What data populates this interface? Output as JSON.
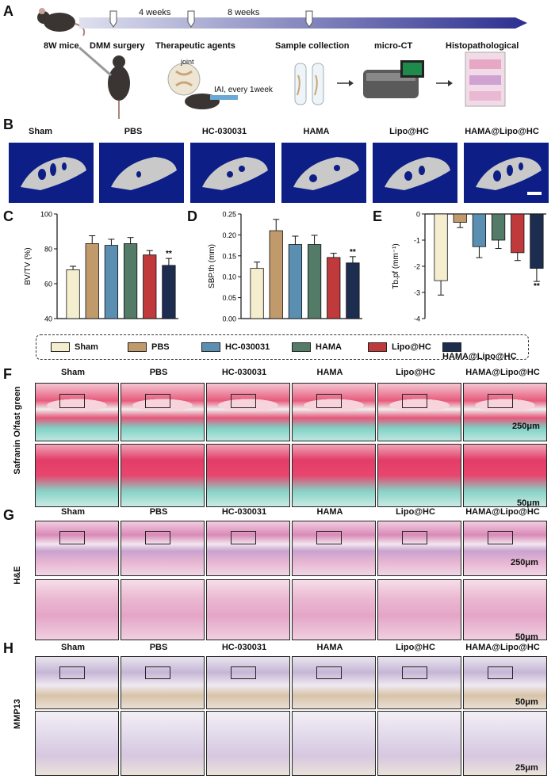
{
  "panels": {
    "A": "A",
    "B": "B",
    "C": "C",
    "D": "D",
    "E": "E",
    "F": "F",
    "G": "G",
    "H": "H"
  },
  "timeline": {
    "mice_label": "8W mice",
    "span1": "4 weeks",
    "span2": "8 weeks",
    "step_dmm": "DMM surgery",
    "step_agents": "Therapeutic agents",
    "step_sample": "Sample collection",
    "step_ct": "micro-CT",
    "step_histo": "Histopathological",
    "joint_label": "joint",
    "iai_label": "IAI, every 1week"
  },
  "groups": [
    "Sham",
    "PBS",
    "HC-030031",
    "HAMA",
    "Lipo@HC",
    "HAMA@Lipo@HC"
  ],
  "colors": {
    "Sham": "#f4eecf",
    "PBS": "#c19a6b",
    "HC-030031": "#5b8fb2",
    "HAMA": "#547a68",
    "Lipo@HC": "#c0393b",
    "HAMA@Lipo@HC": "#1d2d50"
  },
  "stain_labels": {
    "F": "Safranin O/fast green",
    "G": "H&E",
    "H": "MMP13"
  },
  "scale_bars": {
    "F_top": "250μm",
    "F_bot": "50μm",
    "G_top": "250μm",
    "G_bot": "50μm",
    "H_top": "50μm",
    "H_bot": "25μm"
  },
  "chart_data": [
    {
      "id": "C",
      "type": "bar",
      "ylabel": "BV/TV (%)",
      "ylim": [
        40,
        100
      ],
      "yticks": [
        40,
        60,
        80,
        100
      ],
      "categories": [
        "Sham",
        "PBS",
        "HC-030031",
        "HAMA",
        "Lipo@HC",
        "HAMA@Lipo@HC"
      ],
      "values": [
        68,
        83,
        82,
        83,
        76.5,
        70.5
      ],
      "errors": [
        2,
        4.5,
        3.5,
        3.5,
        2.5,
        4
      ],
      "annotations": [
        {
          "category": "HAMA@Lipo@HC",
          "text": "**"
        }
      ]
    },
    {
      "id": "D",
      "type": "bar",
      "ylabel": "SBP.th (mm)",
      "ylim": [
        0,
        0.25
      ],
      "yticks": [
        0.0,
        0.05,
        0.1,
        0.15,
        0.2,
        0.25
      ],
      "categories": [
        "Sham",
        "PBS",
        "HC-030031",
        "HAMA",
        "Lipo@HC",
        "HAMA@Lipo@HC"
      ],
      "values": [
        0.12,
        0.21,
        0.177,
        0.177,
        0.146,
        0.133
      ],
      "errors": [
        0.015,
        0.027,
        0.02,
        0.022,
        0.01,
        0.015
      ],
      "annotations": [
        {
          "category": "HAMA@Lipo@HC",
          "text": "**"
        }
      ]
    },
    {
      "id": "E",
      "type": "bar",
      "ylabel": "Tb.pf (mm⁻¹)",
      "ylim": [
        -4,
        0
      ],
      "yticks": [
        0,
        -1,
        -2,
        -3,
        -4
      ],
      "categories": [
        "Sham",
        "PBS",
        "HC-030031",
        "HAMA",
        "Lipo@HC",
        "HAMA@Lipo@HC"
      ],
      "values": [
        -2.55,
        -0.32,
        -1.25,
        -1.0,
        -1.48,
        -2.08
      ],
      "errors": [
        0.55,
        0.2,
        0.42,
        0.32,
        0.3,
        0.5
      ],
      "annotations": [
        {
          "category": "HAMA@Lipo@HC",
          "text": "**"
        }
      ]
    }
  ]
}
